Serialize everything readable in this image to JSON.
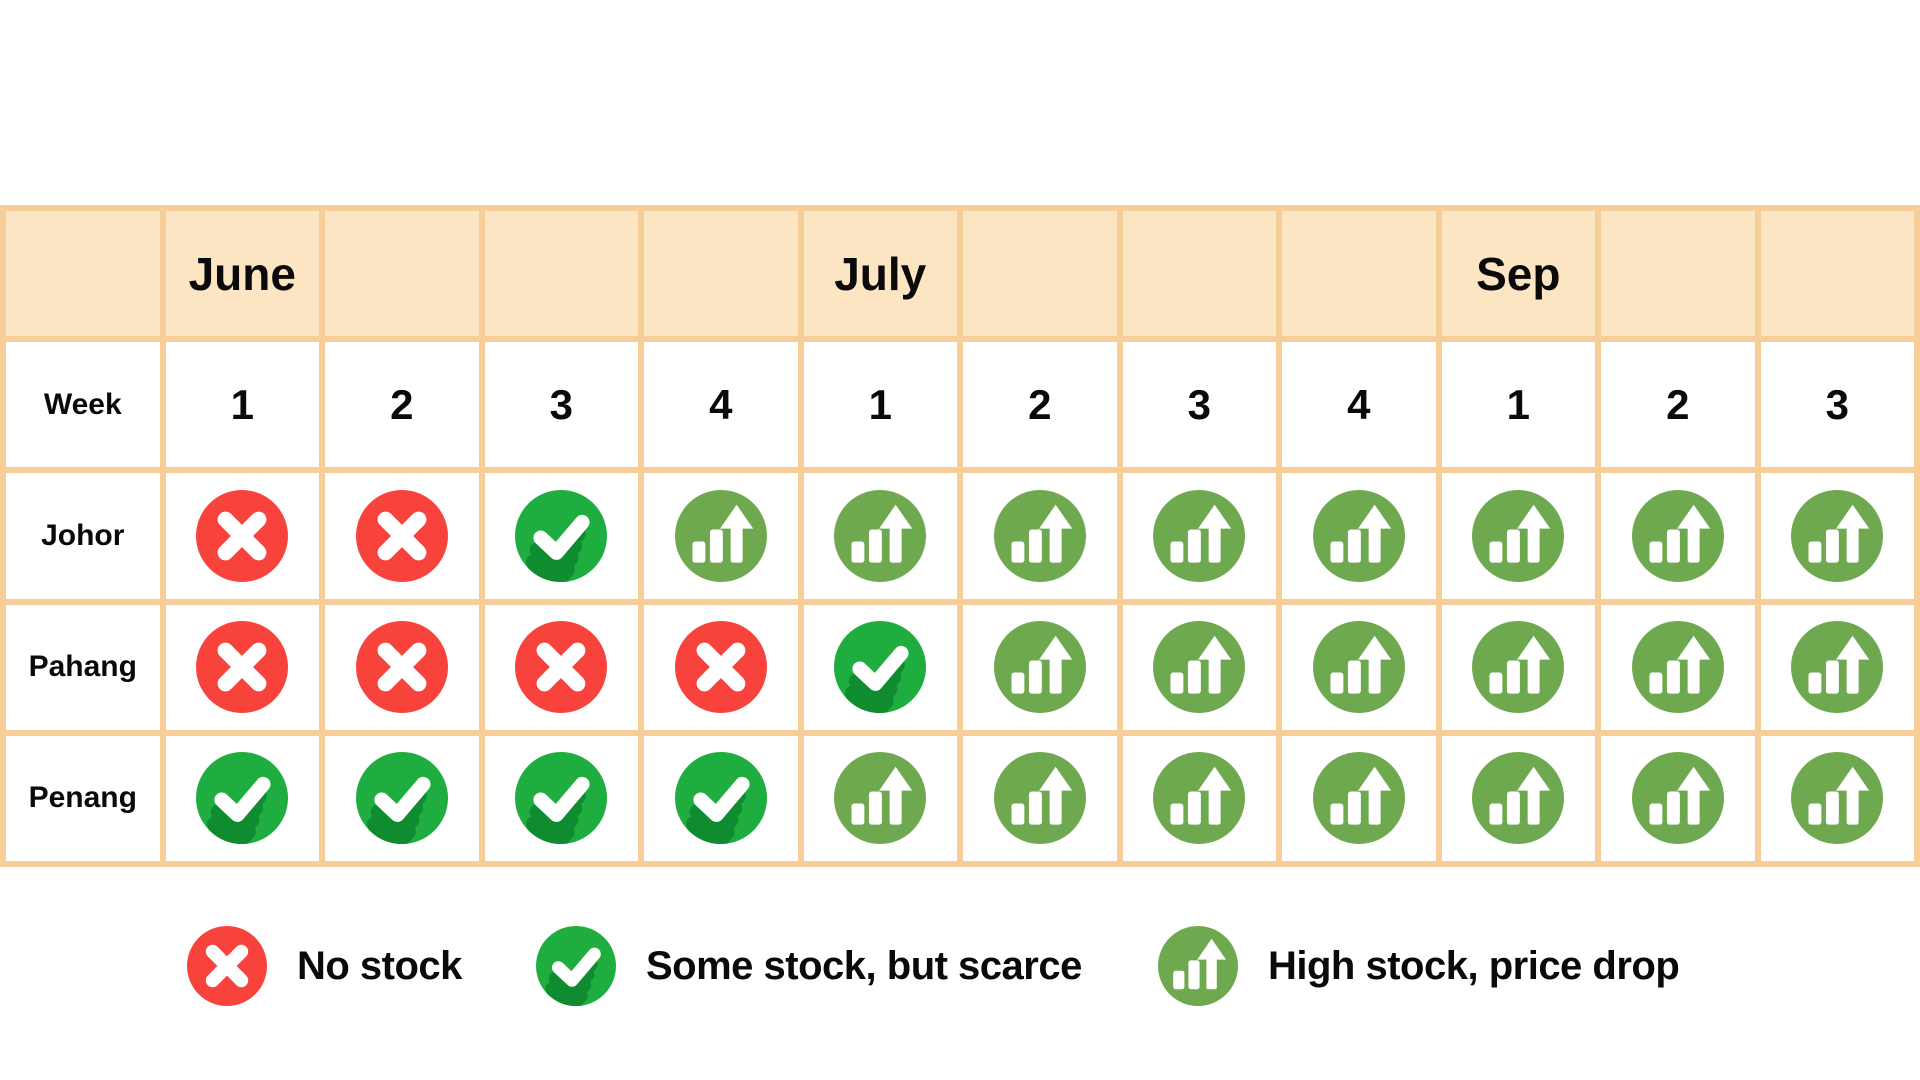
{
  "colors": {
    "table_border": "#F7CE9A",
    "header_bg": "#FCE5C2",
    "cell_bg": "#FFFFFF",
    "no_stock_red": "#F8433D",
    "some_stock_green": "#1FAD40",
    "some_stock_shadow": "#108C30",
    "high_stock_green": "#6FA94F",
    "icon_glyph": "#FFFFFF",
    "text": "#0A0A0A"
  },
  "table": {
    "months_row": [
      "",
      "June",
      "",
      "",
      "",
      "July",
      "",
      "",
      "",
      "Sep",
      "",
      ""
    ],
    "week_label": "Week",
    "week_numbers": [
      "1",
      "2",
      "3",
      "4",
      "1",
      "2",
      "3",
      "4",
      "1",
      "2",
      "3"
    ],
    "rows": [
      {
        "label": "Johor",
        "cells": [
          "no_stock",
          "no_stock",
          "some_stock",
          "high_stock",
          "high_stock",
          "high_stock",
          "high_stock",
          "high_stock",
          "high_stock",
          "high_stock",
          "high_stock"
        ]
      },
      {
        "label": "Pahang",
        "cells": [
          "no_stock",
          "no_stock",
          "no_stock",
          "no_stock",
          "some_stock",
          "high_stock",
          "high_stock",
          "high_stock",
          "high_stock",
          "high_stock",
          "high_stock"
        ]
      },
      {
        "label": "Penang",
        "cells": [
          "some_stock",
          "some_stock",
          "some_stock",
          "some_stock",
          "high_stock",
          "high_stock",
          "high_stock",
          "high_stock",
          "high_stock",
          "high_stock",
          "high_stock"
        ]
      }
    ]
  },
  "legend": {
    "items": [
      {
        "icon": "no-stock-icon",
        "status": "no_stock",
        "label": "No stock"
      },
      {
        "icon": "some-stock-icon",
        "status": "some_stock",
        "label": "Some stock, but scarce"
      },
      {
        "icon": "high-stock-icon",
        "status": "high_stock",
        "label": "High stock, price drop"
      }
    ]
  },
  "chart_data": {
    "type": "table",
    "columns": [
      {
        "month": "June",
        "week": "1"
      },
      {
        "month": "June",
        "week": "2"
      },
      {
        "month": "June",
        "week": "3"
      },
      {
        "month": "June",
        "week": "4"
      },
      {
        "month": "July",
        "week": "1"
      },
      {
        "month": "July",
        "week": "2"
      },
      {
        "month": "July",
        "week": "3"
      },
      {
        "month": "July",
        "week": "4"
      },
      {
        "month": "Sep",
        "week": "1"
      },
      {
        "month": "Sep",
        "week": "2"
      },
      {
        "month": "Sep",
        "week": "3"
      }
    ],
    "rows": [
      "Johor",
      "Pahang",
      "Penang"
    ],
    "values": [
      [
        "no_stock",
        "no_stock",
        "some_stock",
        "high_stock",
        "high_stock",
        "high_stock",
        "high_stock",
        "high_stock",
        "high_stock",
        "high_stock",
        "high_stock"
      ],
      [
        "no_stock",
        "no_stock",
        "no_stock",
        "no_stock",
        "some_stock",
        "high_stock",
        "high_stock",
        "high_stock",
        "high_stock",
        "high_stock",
        "high_stock"
      ],
      [
        "some_stock",
        "some_stock",
        "some_stock",
        "some_stock",
        "high_stock",
        "high_stock",
        "high_stock",
        "high_stock",
        "high_stock",
        "high_stock",
        "high_stock"
      ]
    ],
    "status_legend": {
      "no_stock": "No stock",
      "some_stock": "Some stock, but scarce",
      "high_stock": "High stock, price drop"
    }
  }
}
